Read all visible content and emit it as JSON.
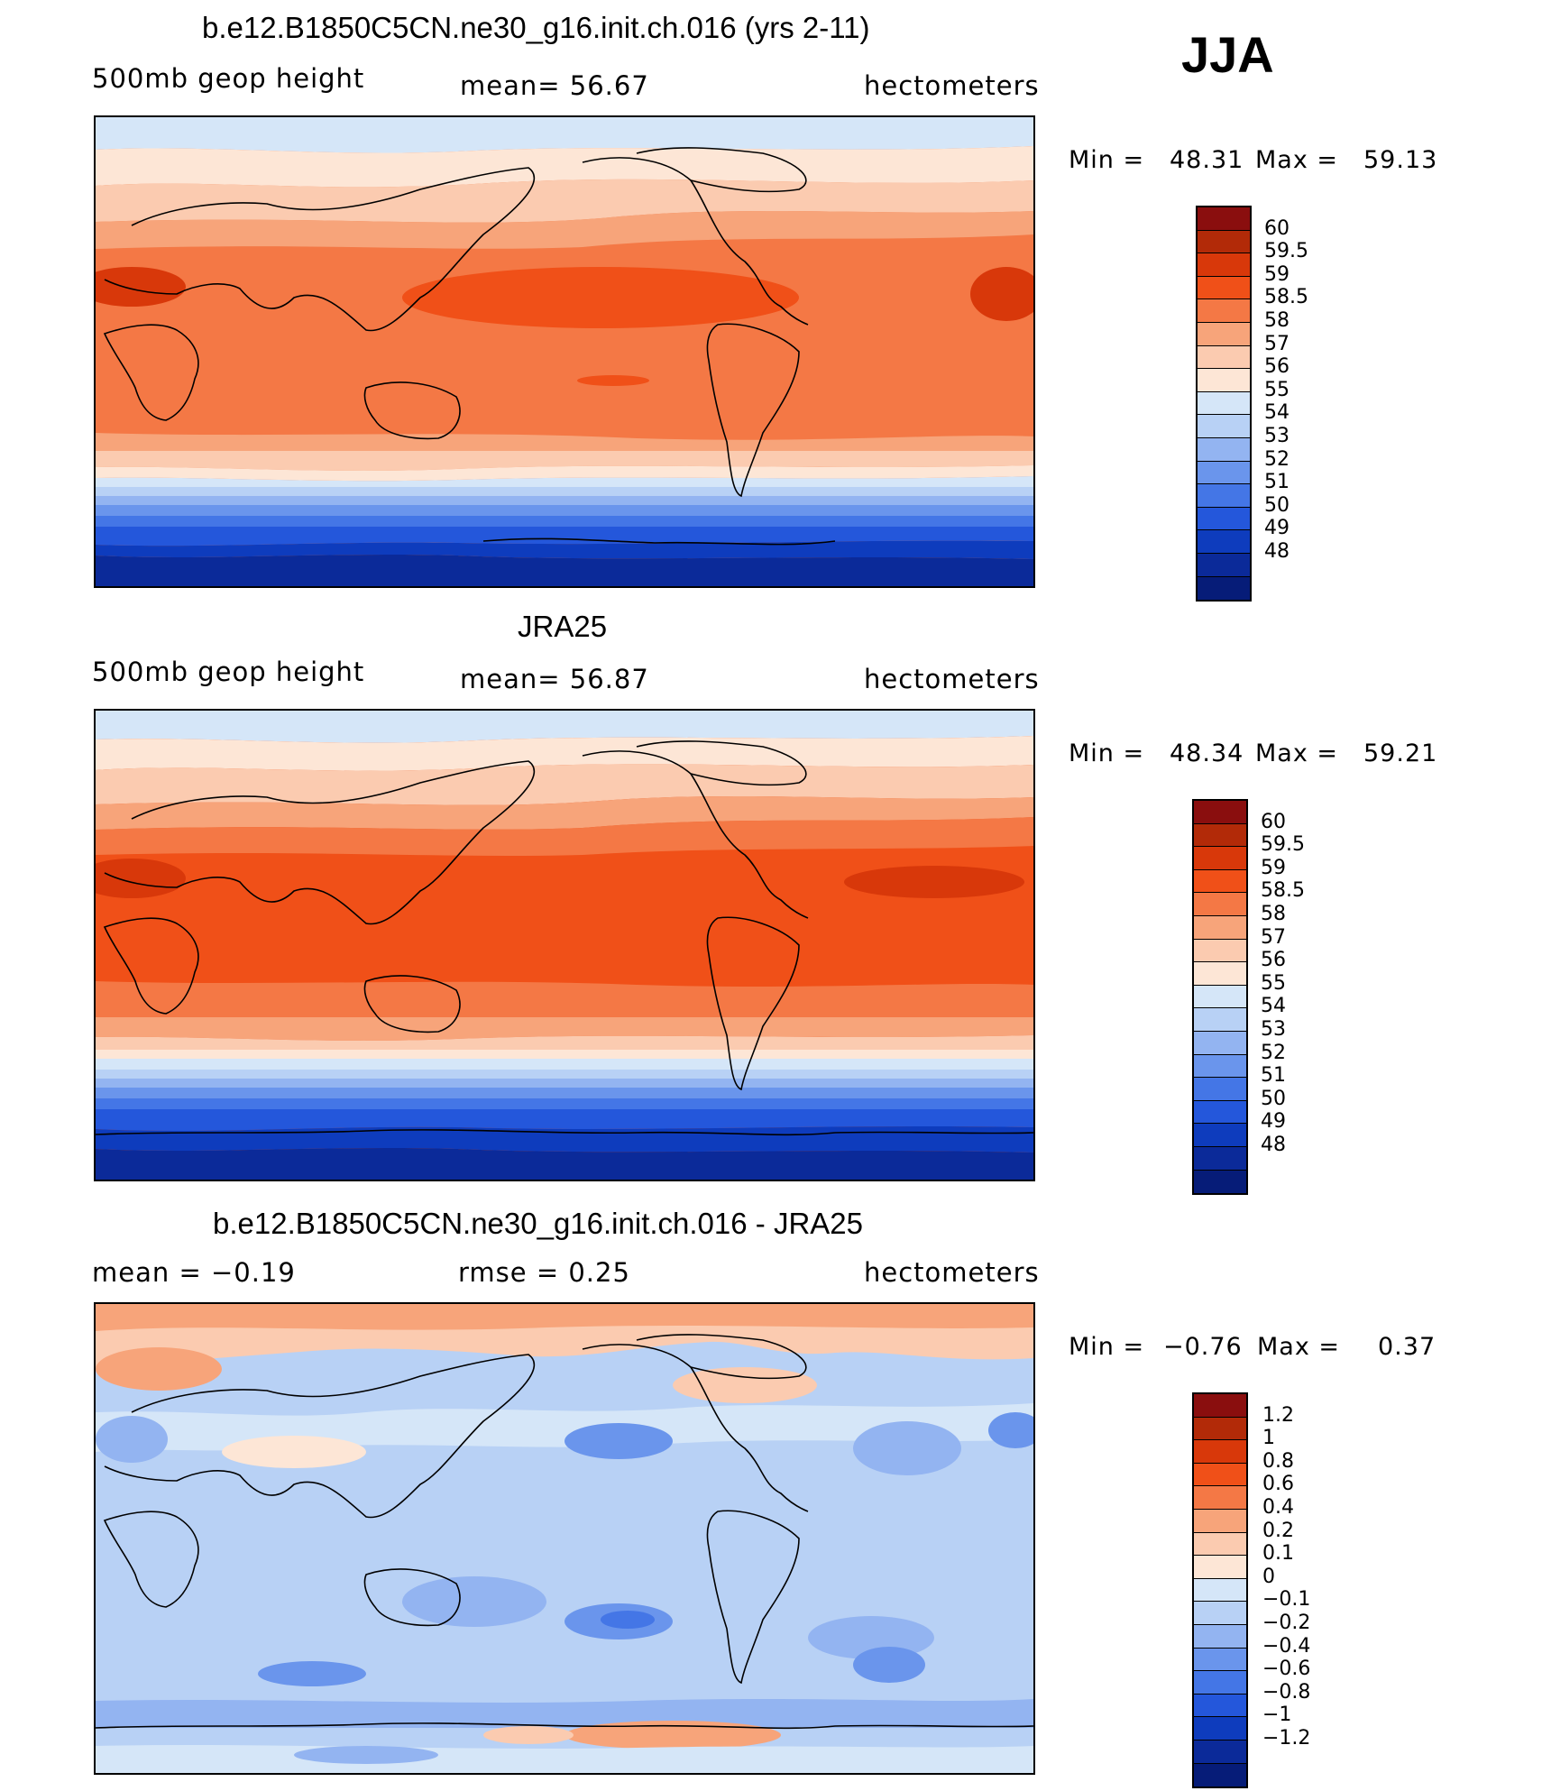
{
  "season": "JJA",
  "palette_model": [
    "#8a0e0e",
    "#b22a08",
    "#d8380a",
    "#f05018",
    "#f47845",
    "#f7a47a",
    "#fbcbb0",
    "#fde6d6",
    "#d5e6f8",
    "#b8d1f5",
    "#93b4f1",
    "#6a95ec",
    "#4476e6",
    "#2457db",
    "#0e3cbd",
    "#0b2a99",
    "#061c78"
  ],
  "palette_diff": [
    "#8a0e0e",
    "#b22a08",
    "#d8380a",
    "#f05018",
    "#f47845",
    "#f7a47a",
    "#fbcbb0",
    "#fde6d6",
    "#d5e6f8",
    "#b8d1f5",
    "#93b4f1",
    "#6a95ec",
    "#4476e6",
    "#2457db",
    "#0e3cbd",
    "#0b2a99",
    "#061c78"
  ],
  "panels": [
    {
      "title": "b.e12.B1850C5CN.ne30_g16.init.ch.016 (yrs 2-11)",
      "left_label": "500mb  geop  height",
      "center_label": "mean=   56.67",
      "right_label": "hectometers",
      "min_label": "Min  =",
      "min_value": "48.31",
      "max_label": "Max  =",
      "max_value": "59.13",
      "colorbar_labels": [
        "60",
        "59.5",
        "59",
        "58.5",
        "58",
        "57",
        "56",
        "55",
        "54",
        "53",
        "52",
        "51",
        "50",
        "49",
        "48"
      ]
    },
    {
      "title": "JRA25",
      "left_label": "500mb  geop  height",
      "center_label": "mean=   56.87",
      "right_label": "hectometers",
      "min_label": "Min  =",
      "min_value": "48.34",
      "max_label": "Max  =",
      "max_value": "59.21",
      "colorbar_labels": [
        "60",
        "59.5",
        "59",
        "58.5",
        "58",
        "57",
        "56",
        "55",
        "54",
        "53",
        "52",
        "51",
        "50",
        "49",
        "48"
      ]
    },
    {
      "title": "b.e12.B1850C5CN.ne30_g16.init.ch.016 - JRA25",
      "left_label": "mean  =    −0.19",
      "center_label": "rmse  =     0.25",
      "right_label": "hectometers",
      "min_label": "Min  =",
      "min_value": "−0.76",
      "max_label": "Max  =",
      "max_value": "0.37",
      "colorbar_labels": [
        "1.2",
        "1",
        "0.8",
        "0.6",
        "0.4",
        "0.2",
        "0.1",
        "0",
        "−0.1",
        "−0.2",
        "−0.4",
        "−0.6",
        "−0.8",
        "−1",
        "−1.2"
      ]
    }
  ]
}
